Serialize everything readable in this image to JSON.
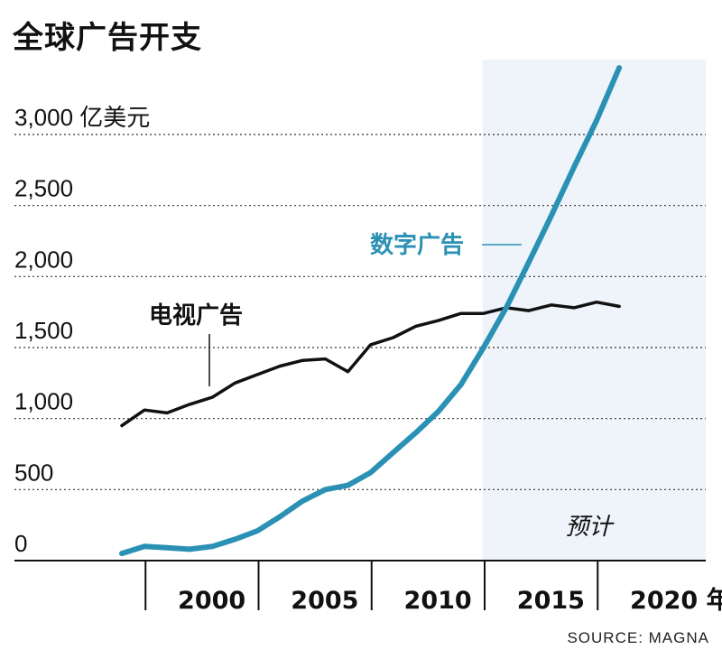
{
  "title": "全球广告开支",
  "source": "SOURCE: MAGNA",
  "chart_data": {
    "type": "line",
    "ylabel": "亿美元",
    "ylim": [
      0,
      3000
    ],
    "y_ticks": [
      {
        "value": 0,
        "label": "0"
      },
      {
        "value": 500,
        "label": "500"
      },
      {
        "value": 1000,
        "label": "1,000"
      },
      {
        "value": 1500,
        "label": "1,500"
      },
      {
        "value": 2000,
        "label": "2,000"
      },
      {
        "value": 2500,
        "label": "2,500"
      },
      {
        "value": 3000,
        "label": "3,000"
      }
    ],
    "x_ticks": [
      {
        "value": 2000,
        "label": "2000"
      },
      {
        "value": 2005,
        "label": "2005"
      },
      {
        "value": 2010,
        "label": "2010"
      },
      {
        "value": 2015,
        "label": "2015"
      },
      {
        "value": 2020,
        "label": "2020"
      }
    ],
    "xunit": "年",
    "forecast": {
      "start": 2016,
      "label": "预计"
    },
    "grid": true,
    "series": [
      {
        "name": "电视广告",
        "color": "#111111",
        "x": [
          1999,
          2000,
          2001,
          2002,
          2003,
          2004,
          2005,
          2006,
          2007,
          2008,
          2009,
          2010,
          2011,
          2012,
          2013,
          2014,
          2015,
          2016,
          2017,
          2018,
          2019,
          2020,
          2021
        ],
        "values": [
          950,
          1060,
          1040,
          1100,
          1150,
          1250,
          1310,
          1370,
          1410,
          1420,
          1330,
          1520,
          1570,
          1650,
          1690,
          1740,
          1740,
          1780,
          1760,
          1800,
          1780,
          1820,
          1790
        ]
      },
      {
        "name": "数字广告",
        "color": "#2a91b5",
        "x": [
          1999,
          2000,
          2001,
          2002,
          2003,
          2004,
          2005,
          2006,
          2007,
          2008,
          2009,
          2010,
          2011,
          2012,
          2013,
          2014,
          2015,
          2016,
          2017,
          2018,
          2019,
          2020,
          2021
        ],
        "values": [
          50,
          100,
          90,
          80,
          100,
          150,
          210,
          310,
          420,
          500,
          530,
          620,
          760,
          900,
          1050,
          1240,
          1500,
          1780,
          2100,
          2430,
          2770,
          3100,
          3470
        ]
      }
    ]
  }
}
